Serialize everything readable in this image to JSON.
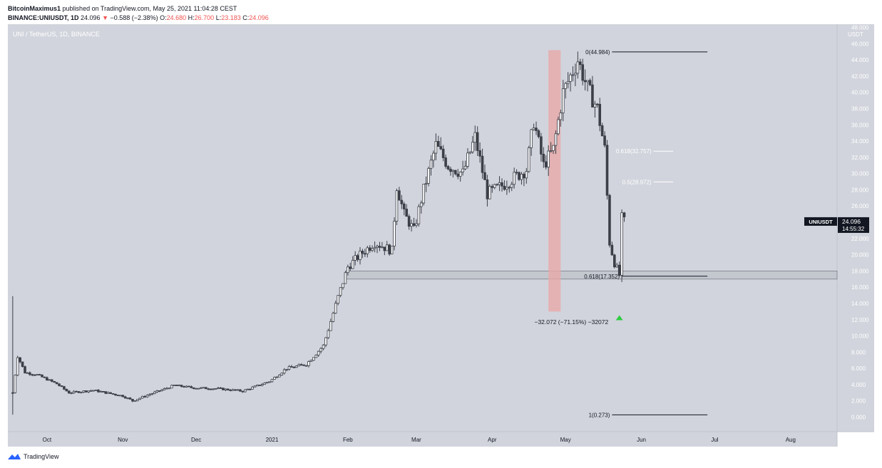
{
  "header": {
    "author": "BitcoinMaximus1",
    "published_text": "published on TradingView.com, May 25, 2021 11:04:28 CEST",
    "symbol": "BINANCE:UNIUSDT, 1D",
    "last_price": "24.096",
    "change_arrow": "▼",
    "change": "−0.588 (−2.38%)",
    "o_label": "O:",
    "open": "24.680",
    "h_label": "H:",
    "high": "26.700",
    "l_label": "L:",
    "low": "23.183",
    "c_label": "C:",
    "close": "24.096"
  },
  "footer": {
    "brand": "TradingView"
  },
  "colors": {
    "background": "#d1d4dc",
    "candle": "#3c3f48",
    "up_arrow": "#26a69a",
    "red_zone": "#e8a9a9",
    "axis_text": "#ffffff"
  },
  "chart_data": {
    "type": "candlestick",
    "title": "UNI / TetherUS, 1D, BINANCE",
    "y_unit": "USDT",
    "ylim": [
      -1.8,
      48.4
    ],
    "y_ticks": [
      "0.000",
      "2.000",
      "4.000",
      "6.000",
      "8.000",
      "10.000",
      "12.000",
      "14.000",
      "16.000",
      "18.000",
      "20.000",
      "22.000",
      "24.000",
      "26.000",
      "28.000",
      "30.000",
      "32.000",
      "34.000",
      "36.000",
      "38.000",
      "40.000",
      "42.000",
      "44.000",
      "46.000",
      "48.000"
    ],
    "x_ticks": [
      {
        "label": "Oct",
        "date": "2020-10-01"
      },
      {
        "label": "Nov",
        "date": "2020-11-01"
      },
      {
        "label": "Dec",
        "date": "2020-12-01"
      },
      {
        "label": "2021",
        "date": "2021-01-01"
      },
      {
        "label": "Feb",
        "date": "2021-02-01"
      },
      {
        "label": "Mar",
        "date": "2021-03-01"
      },
      {
        "label": "Apr",
        "date": "2021-04-01"
      },
      {
        "label": "May",
        "date": "2021-05-01"
      },
      {
        "label": "Jun",
        "date": "2021-06-01"
      },
      {
        "label": "Jul",
        "date": "2021-07-01"
      },
      {
        "label": "Aug",
        "date": "2021-08-01"
      }
    ],
    "x_range": [
      "2020-09-15",
      "2021-08-20"
    ],
    "price_path": [
      {
        "date": "2020-09-17",
        "value": 3.0
      },
      {
        "date": "2020-09-19",
        "value": 7.5
      },
      {
        "date": "2020-09-22",
        "value": 5.5
      },
      {
        "date": "2020-09-27",
        "value": 5.2
      },
      {
        "date": "2020-10-05",
        "value": 4.1
      },
      {
        "date": "2020-10-10",
        "value": 3.0
      },
      {
        "date": "2020-10-20",
        "value": 3.3
      },
      {
        "date": "2020-11-01",
        "value": 2.6
      },
      {
        "date": "2020-11-05",
        "value": 2.0
      },
      {
        "date": "2020-11-12",
        "value": 2.8
      },
      {
        "date": "2020-11-22",
        "value": 3.9
      },
      {
        "date": "2020-11-30",
        "value": 3.6
      },
      {
        "date": "2020-12-10",
        "value": 3.5
      },
      {
        "date": "2020-12-20",
        "value": 3.2
      },
      {
        "date": "2020-12-31",
        "value": 4.4
      },
      {
        "date": "2021-01-07",
        "value": 6.0
      },
      {
        "date": "2021-01-15",
        "value": 6.5
      },
      {
        "date": "2021-01-22",
        "value": 8.8
      },
      {
        "date": "2021-01-28",
        "value": 14.8
      },
      {
        "date": "2021-02-01",
        "value": 18.5
      },
      {
        "date": "2021-02-06",
        "value": 20.0
      },
      {
        "date": "2021-02-12",
        "value": 21.5
      },
      {
        "date": "2021-02-19",
        "value": 20.5
      },
      {
        "date": "2021-02-21",
        "value": 28.5
      },
      {
        "date": "2021-02-24",
        "value": 25.0
      },
      {
        "date": "2021-02-28",
        "value": 23.0
      },
      {
        "date": "2021-03-04",
        "value": 28.0
      },
      {
        "date": "2021-03-09",
        "value": 33.5
      },
      {
        "date": "2021-03-14",
        "value": 31.0
      },
      {
        "date": "2021-03-20",
        "value": 30.0
      },
      {
        "date": "2021-03-25",
        "value": 34.5
      },
      {
        "date": "2021-03-30",
        "value": 27.5
      },
      {
        "date": "2021-04-05",
        "value": 28.5
      },
      {
        "date": "2021-04-10",
        "value": 29.5
      },
      {
        "date": "2021-04-15",
        "value": 30.5
      },
      {
        "date": "2021-04-18",
        "value": 36.5
      },
      {
        "date": "2021-04-22",
        "value": 31.0
      },
      {
        "date": "2021-04-26",
        "value": 33.0
      },
      {
        "date": "2021-04-30",
        "value": 40.0
      },
      {
        "date": "2021-05-03",
        "value": 42.0
      },
      {
        "date": "2021-05-06",
        "value": 44.0
      },
      {
        "date": "2021-05-10",
        "value": 40.5
      },
      {
        "date": "2021-05-14",
        "value": 38.0
      },
      {
        "date": "2021-05-17",
        "value": 33.0
      },
      {
        "date": "2021-05-19",
        "value": 21.5
      },
      {
        "date": "2021-05-21",
        "value": 19.0
      },
      {
        "date": "2021-05-23",
        "value": 17.5
      },
      {
        "date": "2021-05-24",
        "value": 24.5
      },
      {
        "date": "2021-05-25",
        "value": 24.096
      }
    ],
    "fib_levels": [
      {
        "label": "0(44.984)",
        "value": 44.984,
        "x_start": "2021-05-20",
        "x_end": "2021-06-28",
        "color": "#131722"
      },
      {
        "label": "0.618(32.757)",
        "value": 32.757,
        "x_start": "2021-06-06",
        "x_end": "2021-06-14",
        "color": "#ffffff"
      },
      {
        "label": "0.5(28.972)",
        "value": 28.972,
        "x_start": "2021-06-06",
        "x_end": "2021-06-14",
        "color": "#ffffff"
      },
      {
        "label": "0.618(17.352)",
        "value": 17.352,
        "x_start": "2021-05-24",
        "x_end": "2021-06-28",
        "color": "#131722"
      },
      {
        "label": "1(0.273)",
        "value": 0.273,
        "x_start": "2021-05-20",
        "x_end": "2021-06-28",
        "color": "#131722"
      }
    ],
    "support_zone": {
      "low": 17.0,
      "high": 18.0,
      "x_start": "2021-01-31",
      "x_end": "2021-08-20"
    },
    "red_zone": {
      "x_start": "2021-04-24",
      "x_end": "2021-04-29",
      "low": 13.0,
      "high": 45.2
    },
    "annotation": {
      "text": "−32.072 (−71.15%) −32072",
      "date": "2021-05-22",
      "value": 11.7
    },
    "up_arrow": {
      "date": "2021-05-23",
      "value": 12.2
    },
    "price_label": {
      "symbol": "UNIUSDT",
      "price": "24.096",
      "countdown": "14:55:32",
      "value": 24.096
    }
  }
}
